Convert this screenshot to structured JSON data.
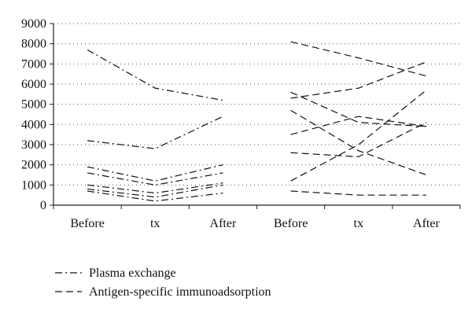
{
  "chart_data": {
    "type": "line",
    "categories": [
      "Before",
      "tx",
      "After",
      "Before",
      "tx",
      "After"
    ],
    "ylim": [
      0,
      9000
    ],
    "yticks": [
      0,
      1000,
      2000,
      3000,
      4000,
      5000,
      6000,
      7000,
      8000,
      9000
    ],
    "grid": "horizontal dotted",
    "legend_position": "bottom-left",
    "colors": {
      "lines": "#111111",
      "grid": "#555555",
      "axis": "#222222"
    },
    "groups": [
      {
        "name": "Plasma exchange",
        "dash": "dash-dot",
        "x_offset": 0,
        "series": [
          {
            "values": [
              7700,
              5800,
              5200
            ]
          },
          {
            "values": [
              3200,
              2800,
              4400
            ]
          },
          {
            "values": [
              1900,
              1200,
              2000
            ]
          },
          {
            "values": [
              1600,
              1000,
              1600
            ]
          },
          {
            "values": [
              1000,
              600,
              1100
            ]
          },
          {
            "values": [
              800,
              400,
              1000
            ]
          },
          {
            "values": [
              700,
              200,
              600
            ]
          }
        ]
      },
      {
        "name": "Antigen-specific immunoadsorption",
        "dash": "dash",
        "x_offset": 3,
        "series": [
          {
            "values": [
              8100,
              7300,
              6400
            ]
          },
          {
            "values": [
              5300,
              5800,
              7100
            ]
          },
          {
            "values": [
              5600,
              4100,
              3900
            ]
          },
          {
            "values": [
              3500,
              4400,
              3900
            ]
          },
          {
            "values": [
              4700,
              2700,
              1500
            ]
          },
          {
            "values": [
              2600,
              2400,
              4100
            ]
          },
          {
            "values": [
              1200,
              3000,
              5700
            ]
          },
          {
            "values": [
              700,
              500,
              500
            ]
          }
        ]
      }
    ]
  }
}
